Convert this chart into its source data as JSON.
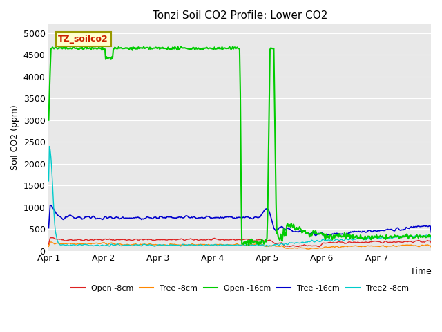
{
  "title": "Tonzi Soil CO2 Profile: Lower CO2",
  "xlabel": "Time",
  "ylabel": "Soil CO2 (ppm)",
  "ylim": [
    0,
    5200
  ],
  "yticks": [
    0,
    500,
    1000,
    1500,
    2000,
    2500,
    3000,
    3500,
    4000,
    4500,
    5000
  ],
  "legend_label": "TZ_soilco2",
  "legend_text_color": "#cc2200",
  "legend_bg_color": "#ffffcc",
  "legend_border_color": "#999900",
  "bg_color": "#e8e8e8",
  "x_start_days": 0,
  "x_end_days": 7.0,
  "xtick_positions": [
    0,
    1,
    2,
    3,
    4,
    5,
    6,
    7
  ],
  "xtick_labels": [
    "Apr 1",
    "Apr 2",
    "Apr 3",
    "Apr 4",
    "Apr 5",
    "Apr 6",
    "Apr 7",
    ""
  ],
  "series": {
    "open_8cm": {
      "label": "Open -8cm",
      "color": "#dd2222",
      "linewidth": 1.0
    },
    "tree_8cm": {
      "label": "Tree -8cm",
      "color": "#ff8800",
      "linewidth": 1.0
    },
    "open_16cm": {
      "label": "Open -16cm",
      "color": "#00cc00",
      "linewidth": 1.5
    },
    "tree_16cm": {
      "label": "Tree -16cm",
      "color": "#0000cc",
      "linewidth": 1.2
    },
    "tree2_8cm": {
      "label": "Tree2 -8cm",
      "color": "#00cccc",
      "linewidth": 1.0
    }
  }
}
